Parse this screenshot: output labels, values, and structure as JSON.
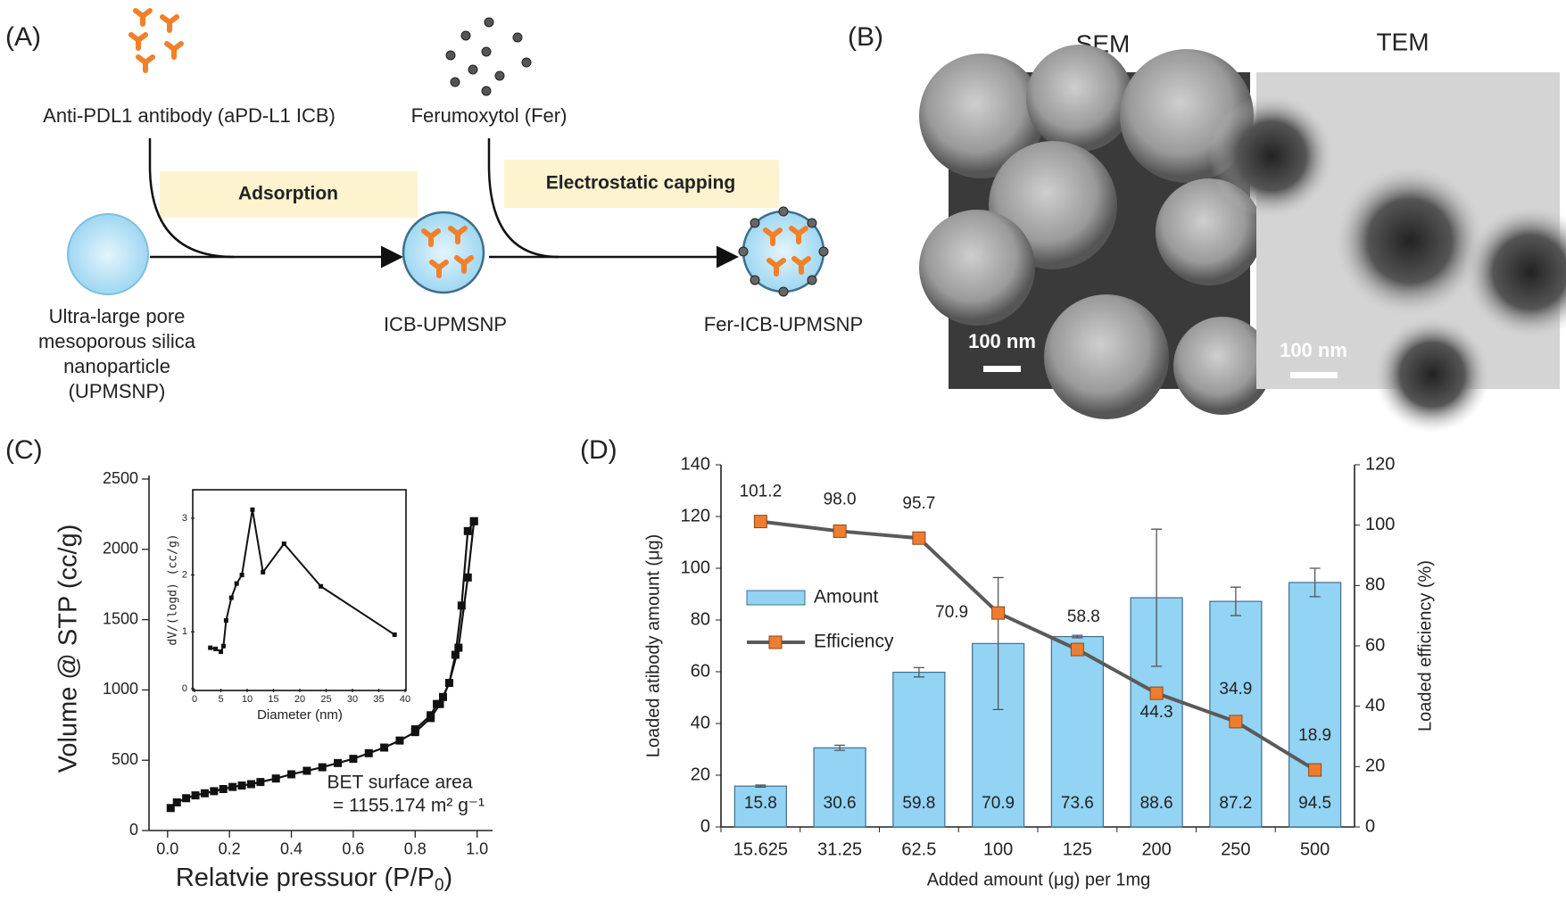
{
  "panel_labels": [
    "(A)",
    "(B)",
    "(C)",
    "(D)"
  ],
  "scheme": {
    "antibody": "Anti-PDL1 antibody (aPD-L1 ICB)",
    "ferumoxytol": "Ferumoxytol (Fer)",
    "step1": "Adsorption",
    "step2": "Electrostatic capping",
    "start": [
      "Ultra-large pore",
      "mesoporous silica",
      "nanoparticle",
      "(UPMSNP)"
    ],
    "middle": "ICB-UPMSNP",
    "end": "Fer-ICB-UPMSNP"
  },
  "micrographs": {
    "sem_title": "SEM",
    "tem_title": "TEM",
    "sem_scale": "100 nm",
    "tem_scale": "100 nm"
  },
  "chart_data": [
    {
      "type": "line",
      "ylabel": "Volume @ STP (cc/g)",
      "xlabel": [
        "Relatvie pressuor (P/P",
        "0",
        ")"
      ],
      "annotation": [
        "BET surface area",
        "= 1155.174 m² g⁻¹"
      ],
      "xlim": [
        -0.06,
        1.05
      ],
      "xticks": [
        {
          "value": 0,
          "label": "0.0"
        },
        {
          "value": 0.2,
          "label": "0.2"
        },
        {
          "value": 0.4,
          "label": "0.4"
        },
        {
          "value": 0.6,
          "label": "0.6"
        },
        {
          "value": 0.8,
          "label": "0.8"
        },
        {
          "value": 1,
          "label": "1.0"
        }
      ],
      "ylim": [
        0,
        2500
      ],
      "yticks": [
        0,
        500,
        1000,
        1500,
        2000,
        2500
      ],
      "series": [
        {
          "color": "#111111",
          "x": [
            0.01,
            0.03,
            0.06,
            0.09,
            0.12,
            0.15,
            0.18,
            0.21,
            0.24,
            0.27,
            0.3,
            0.35,
            0.4,
            0.45,
            0.5,
            0.55,
            0.6,
            0.65,
            0.7,
            0.75,
            0.8,
            0.85,
            0.88,
            0.91,
            0.94,
            0.97,
            0.99
          ],
          "values": [
            160,
            200,
            230,
            250,
            265,
            280,
            295,
            310,
            320,
            330,
            345,
            370,
            400,
            425,
            450,
            480,
            510,
            550,
            590,
            640,
            700,
            800,
            900,
            1050,
            1300,
            1800,
            2200
          ]
        },
        {
          "color": "#111111",
          "x": [
            0.99,
            0.97,
            0.95,
            0.93,
            0.91,
            0.89,
            0.87,
            0.85,
            0.8
          ],
          "values": [
            2200,
            2130,
            1600,
            1250,
            1050,
            950,
            900,
            820,
            720
          ]
        }
      ]
    },
    {
      "type": "line",
      "ylabel": "dV/(logd) (cc/g)",
      "xlabel": "Diameter (nm)",
      "xlim": [
        0,
        40
      ],
      "xticks": [
        0,
        5,
        10,
        15,
        20,
        25,
        30,
        35,
        40
      ],
      "ylim": [
        0,
        3.5
      ],
      "yticks": [
        0,
        1,
        2,
        3
      ],
      "series": [
        {
          "color": "#111111",
          "x": [
            3,
            4,
            5,
            5.5,
            6,
            7,
            8,
            9,
            11,
            13,
            17,
            24,
            38
          ],
          "values": [
            0.72,
            0.7,
            0.65,
            0.75,
            1.2,
            1.6,
            1.85,
            2.0,
            3.15,
            2.05,
            2.55,
            1.8,
            0.95
          ]
        }
      ]
    },
    {
      "type": "bar",
      "xlabel": "Added amount (μg) per 1mg",
      "ylabel": "Loaded atibody  amount (μg)",
      "y2label": "Loaded efficiency (%)",
      "categories": [
        "15.625",
        "31.25",
        "62.5",
        "100",
        "125",
        "200",
        "250",
        "500"
      ],
      "ylim": [
        0,
        140
      ],
      "yticks": [
        0,
        20,
        40,
        60,
        80,
        100,
        120,
        140
      ],
      "y2lim": [
        0,
        120
      ],
      "y2ticks": [
        0,
        20,
        40,
        60,
        80,
        100,
        120
      ],
      "series": [
        {
          "name": "Amount",
          "color": "#93d3f3",
          "type": "bar",
          "values": [
            15.8,
            30.6,
            59.8,
            70.9,
            73.6,
            88.6,
            87.2,
            94.5
          ],
          "errors": [
            0.4,
            1,
            1.8,
            25.5,
            0.5,
            26.5,
            5.5,
            5.5
          ]
        },
        {
          "name": "Efficiency",
          "color": "#ed7d31",
          "type": "line",
          "axis": "y2",
          "values": [
            101.2,
            98.0,
            95.7,
            70.9,
            58.8,
            44.3,
            34.9,
            18.9
          ],
          "value_labels": [
            "101.2",
            "98.0",
            "95.7",
            "70.9",
            "58.8",
            "44.3",
            "34.9",
            "18.9"
          ]
        }
      ]
    }
  ]
}
